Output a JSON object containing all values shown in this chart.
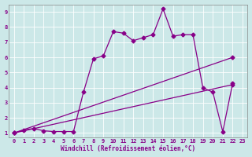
{
  "xlabel": "Windchill (Refroidissement éolien,°C)",
  "bg_color": "#cce8e8",
  "line_color": "#880088",
  "grid_color": "#aacccc",
  "xlim": [
    -0.5,
    23.5
  ],
  "ylim": [
    0.7,
    9.5
  ],
  "xticks": [
    0,
    1,
    2,
    3,
    4,
    5,
    6,
    7,
    8,
    9,
    10,
    11,
    12,
    13,
    14,
    15,
    16,
    17,
    18,
    19,
    20,
    21,
    22,
    23
  ],
  "yticks": [
    1,
    2,
    3,
    4,
    5,
    6,
    7,
    8,
    9
  ],
  "line1_x": [
    0,
    1,
    2,
    3,
    4,
    5,
    6,
    7,
    8,
    9,
    10,
    11,
    12,
    13,
    14,
    15,
    16,
    17,
    18,
    19,
    20,
    21,
    22
  ],
  "line1_y": [
    1.0,
    1.2,
    1.3,
    1.15,
    1.1,
    1.1,
    1.1,
    3.7,
    5.9,
    6.1,
    7.7,
    7.6,
    7.1,
    7.3,
    7.5,
    9.2,
    7.4,
    7.5,
    7.5,
    4.0,
    3.7,
    1.1,
    4.3
  ],
  "line2_x": [
    0,
    22
  ],
  "line2_y": [
    1.0,
    6.0
  ],
  "line3_x": [
    0,
    22
  ],
  "line3_y": [
    1.0,
    4.2
  ],
  "marker_line1": "D",
  "marker_line2": "D",
  "marker_line3": "D",
  "markersize1": 2.5,
  "markersize2": 2.5,
  "markersize3": 2.5,
  "linewidth": 0.9,
  "tick_fontsize": 5,
  "xlabel_fontsize": 5.5
}
